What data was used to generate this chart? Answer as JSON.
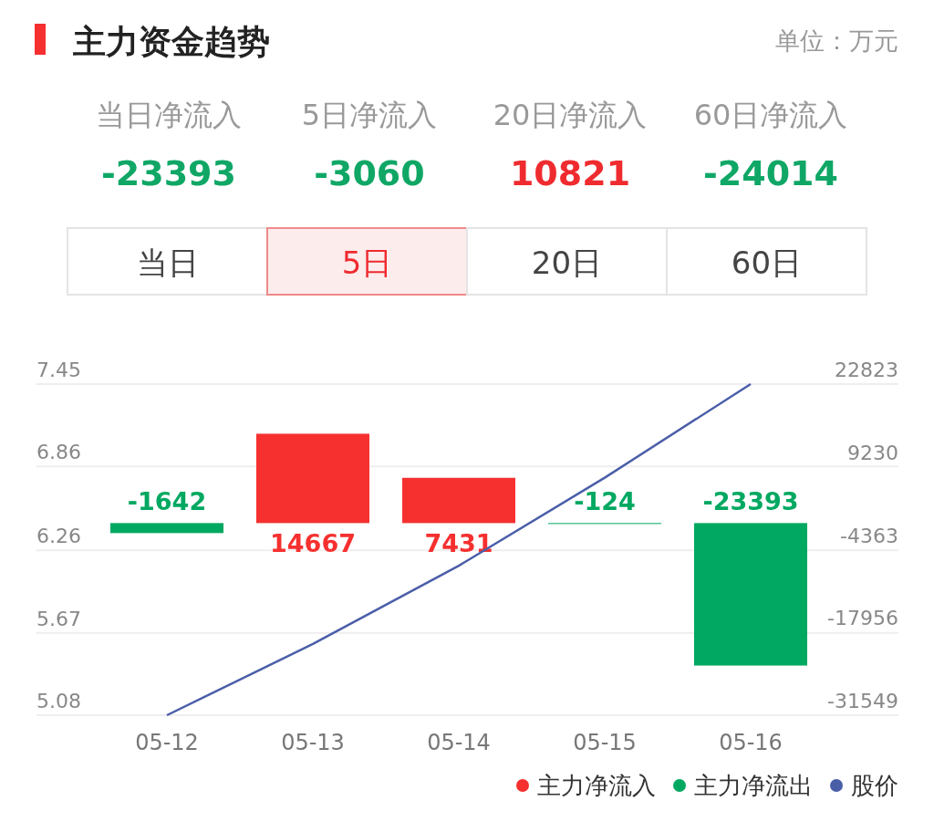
{
  "chart_data": [
    {
      "type": "other",
      "title": "主力资金趋势",
      "subtitle": "单位：万元",
      "categories": [
        "当日净流入",
        "5日净流入",
        "20日净流入",
        "60日净流入"
      ],
      "values": [
        -23393,
        -3060,
        10821,
        -24014
      ],
      "colors": [
        "#10a766",
        "#10a766",
        "#ef2b2f",
        "#10a766"
      ],
      "data_labels": true,
      "annotations": [
        "当日",
        "5日",
        "20日",
        "60日"
      ]
    },
    {
      "type": "bar",
      "categories": [
        "05-12",
        "05-13",
        "05-14",
        "05-15",
        "05-16"
      ],
      "series": [
        {
          "name": "主力净流入",
          "color": "#f5302f",
          "axis": "y2",
          "values": [
            null,
            14667,
            7431,
            null,
            null
          ],
          "value_labels": [
            null,
            "14667",
            "7431",
            null,
            null
          ]
        },
        {
          "name": "主力净流出",
          "color": "#00a861",
          "axis": "y2",
          "values": [
            -1642,
            null,
            null,
            -124,
            -23393
          ],
          "value_labels": [
            "-1642",
            null,
            null,
            "-124",
            "-23393"
          ]
        },
        {
          "name": "股价",
          "type": "line",
          "color": "#4a5ea8",
          "values": [
            5.08,
            5.59,
            6.15,
            6.78,
            7.45
          ]
        }
      ],
      "ylim": [
        5.08,
        7.45
      ],
      "yticks": [
        5.08,
        5.67,
        6.26,
        6.86,
        7.45
      ],
      "y2lim": [
        -31549,
        22823
      ],
      "y2ticks": [
        -31549,
        -17956,
        -4363,
        9230,
        22823
      ],
      "grid": "y",
      "legend": "bottom right"
    }
  ]
}
